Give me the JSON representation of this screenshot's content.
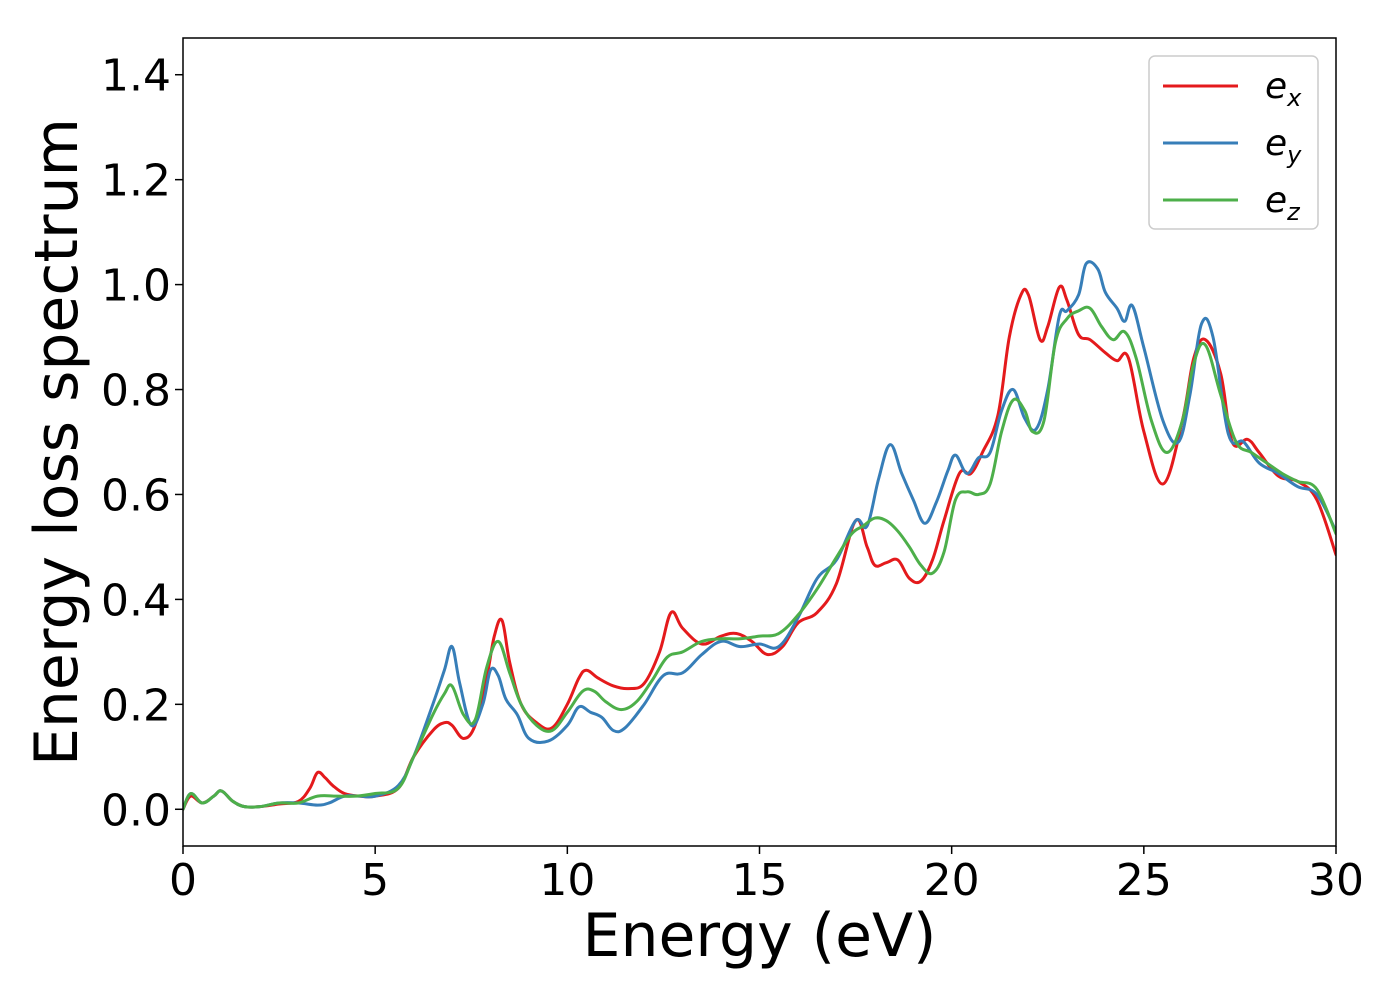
{
  "chart_data": {
    "type": "line",
    "title": "",
    "xlabel": "Energy (eV)",
    "ylabel": "Energy loss spectrum",
    "xlim": [
      0,
      30
    ],
    "ylim": [
      -0.07,
      1.47
    ],
    "xticks": [
      0,
      5,
      10,
      15,
      20,
      25,
      30
    ],
    "xtick_labels": [
      "0",
      "5",
      "10",
      "15",
      "20",
      "25",
      "30"
    ],
    "yticks": [
      0.0,
      0.2,
      0.4,
      0.6,
      0.8,
      1.0,
      1.2,
      1.4
    ],
    "ytick_labels": [
      "0.0",
      "0.2",
      "0.4",
      "0.6",
      "0.8",
      "1.0",
      "1.2",
      "1.4"
    ],
    "grid": false,
    "legend_position": "top-right",
    "series": [
      {
        "name": "e",
        "subscript": "x",
        "color": "#e41a1c",
        "x": [
          0,
          0.2,
          0.5,
          0.8,
          1.0,
          1.3,
          1.6,
          2.0,
          2.5,
          3.0,
          3.3,
          3.5,
          3.7,
          3.9,
          4.2,
          4.6,
          5.0,
          5.6,
          6.0,
          6.5,
          6.8,
          7.0,
          7.3,
          7.6,
          7.9,
          8.1,
          8.3,
          8.5,
          8.8,
          9.2,
          9.6,
          10.0,
          10.3,
          10.5,
          10.8,
          11.2,
          11.6,
          12.0,
          12.4,
          12.7,
          13.0,
          13.5,
          14.0,
          14.4,
          14.8,
          15.2,
          15.6,
          16.0,
          16.5,
          17.0,
          17.5,
          17.8,
          18.0,
          18.3,
          18.6,
          18.9,
          19.2,
          19.5,
          19.8,
          20.2,
          20.5,
          20.8,
          21.2,
          21.5,
          21.8,
          22.0,
          22.3,
          22.5,
          22.8,
          23.0,
          23.3,
          23.6,
          24.0,
          24.3,
          24.6,
          25.0,
          25.5,
          26.0,
          26.3,
          26.6,
          27.0,
          27.3,
          27.7,
          28.0,
          28.5,
          29.0,
          29.5,
          30.0
        ],
        "y": [
          0.0,
          0.025,
          0.012,
          0.025,
          0.035,
          0.015,
          0.005,
          0.005,
          0.01,
          0.015,
          0.04,
          0.07,
          0.06,
          0.045,
          0.03,
          0.025,
          0.025,
          0.04,
          0.1,
          0.15,
          0.165,
          0.16,
          0.135,
          0.16,
          0.25,
          0.33,
          0.36,
          0.28,
          0.2,
          0.165,
          0.155,
          0.2,
          0.25,
          0.265,
          0.25,
          0.235,
          0.23,
          0.24,
          0.3,
          0.375,
          0.345,
          0.315,
          0.33,
          0.335,
          0.32,
          0.295,
          0.31,
          0.355,
          0.375,
          0.43,
          0.55,
          0.5,
          0.465,
          0.47,
          0.475,
          0.44,
          0.435,
          0.475,
          0.55,
          0.64,
          0.64,
          0.68,
          0.75,
          0.9,
          0.98,
          0.98,
          0.895,
          0.92,
          0.995,
          0.97,
          0.905,
          0.895,
          0.87,
          0.855,
          0.86,
          0.72,
          0.62,
          0.74,
          0.86,
          0.895,
          0.83,
          0.7,
          0.705,
          0.68,
          0.635,
          0.625,
          0.59,
          0.485
        ]
      },
      {
        "name": "e",
        "subscript": "y",
        "color": "#377eb8",
        "x": [
          0,
          0.2,
          0.5,
          0.8,
          1.0,
          1.3,
          1.6,
          2.0,
          2.5,
          3.0,
          3.5,
          3.8,
          4.2,
          4.6,
          5.0,
          5.6,
          6.0,
          6.5,
          6.8,
          7.0,
          7.2,
          7.5,
          7.8,
          8.0,
          8.2,
          8.4,
          8.7,
          9.0,
          9.5,
          10.0,
          10.3,
          10.6,
          10.9,
          11.2,
          11.5,
          12.0,
          12.5,
          13.0,
          13.5,
          14.0,
          14.5,
          15.0,
          15.5,
          16.0,
          16.5,
          17.0,
          17.5,
          17.8,
          18.1,
          18.4,
          18.7,
          19.0,
          19.3,
          19.6,
          19.9,
          20.1,
          20.4,
          20.7,
          21.0,
          21.3,
          21.6,
          21.9,
          22.2,
          22.5,
          22.8,
          23.0,
          23.3,
          23.5,
          23.8,
          24.0,
          24.3,
          24.5,
          24.7,
          25.0,
          25.5,
          25.9,
          26.2,
          26.5,
          26.8,
          27.2,
          27.6,
          28.0,
          28.5,
          29.0,
          29.5,
          30.0
        ],
        "y": [
          0.0,
          0.03,
          0.012,
          0.025,
          0.035,
          0.015,
          0.005,
          0.005,
          0.012,
          0.012,
          0.008,
          0.012,
          0.025,
          0.025,
          0.025,
          0.045,
          0.1,
          0.2,
          0.265,
          0.31,
          0.24,
          0.16,
          0.2,
          0.265,
          0.255,
          0.21,
          0.18,
          0.135,
          0.13,
          0.16,
          0.195,
          0.185,
          0.175,
          0.15,
          0.155,
          0.2,
          0.255,
          0.26,
          0.295,
          0.32,
          0.31,
          0.315,
          0.31,
          0.365,
          0.44,
          0.475,
          0.55,
          0.54,
          0.63,
          0.695,
          0.64,
          0.59,
          0.545,
          0.585,
          0.645,
          0.675,
          0.64,
          0.67,
          0.68,
          0.76,
          0.8,
          0.745,
          0.725,
          0.8,
          0.94,
          0.95,
          0.98,
          1.04,
          1.03,
          0.985,
          0.955,
          0.93,
          0.96,
          0.88,
          0.74,
          0.7,
          0.79,
          0.925,
          0.9,
          0.715,
          0.7,
          0.66,
          0.64,
          0.615,
          0.6,
          0.53
        ]
      },
      {
        "name": "e",
        "subscript": "z",
        "color": "#4daf4a",
        "x": [
          0,
          0.2,
          0.5,
          0.8,
          1.0,
          1.3,
          1.6,
          2.0,
          2.5,
          3.0,
          3.5,
          4.0,
          4.5,
          5.0,
          5.6,
          6.0,
          6.5,
          6.8,
          7.0,
          7.3,
          7.6,
          7.9,
          8.2,
          8.5,
          8.8,
          9.2,
          9.6,
          10.0,
          10.4,
          10.7,
          11.0,
          11.4,
          11.8,
          12.2,
          12.6,
          13.0,
          13.5,
          14.0,
          14.5,
          15.0,
          15.5,
          16.0,
          16.5,
          17.0,
          17.4,
          17.7,
          18.0,
          18.3,
          18.6,
          18.9,
          19.2,
          19.5,
          19.8,
          20.1,
          20.4,
          20.7,
          21.0,
          21.3,
          21.6,
          21.9,
          22.1,
          22.4,
          22.7,
          23.0,
          23.3,
          23.6,
          23.9,
          24.2,
          24.5,
          24.8,
          25.2,
          25.6,
          26.0,
          26.3,
          26.6,
          27.0,
          27.4,
          27.8,
          28.2,
          28.6,
          29.0,
          29.5,
          30.0
        ],
        "y": [
          0.0,
          0.03,
          0.012,
          0.025,
          0.035,
          0.015,
          0.005,
          0.005,
          0.012,
          0.012,
          0.025,
          0.025,
          0.025,
          0.03,
          0.04,
          0.1,
          0.18,
          0.22,
          0.235,
          0.18,
          0.17,
          0.27,
          0.32,
          0.26,
          0.2,
          0.16,
          0.15,
          0.185,
          0.225,
          0.225,
          0.205,
          0.19,
          0.205,
          0.245,
          0.29,
          0.3,
          0.32,
          0.325,
          0.325,
          0.33,
          0.335,
          0.37,
          0.42,
          0.48,
          0.525,
          0.54,
          0.555,
          0.55,
          0.53,
          0.5,
          0.465,
          0.45,
          0.49,
          0.59,
          0.605,
          0.6,
          0.62,
          0.72,
          0.78,
          0.76,
          0.72,
          0.74,
          0.89,
          0.935,
          0.95,
          0.955,
          0.92,
          0.895,
          0.91,
          0.86,
          0.74,
          0.68,
          0.74,
          0.85,
          0.885,
          0.79,
          0.7,
          0.68,
          0.66,
          0.64,
          0.625,
          0.61,
          0.525
        ]
      }
    ]
  }
}
